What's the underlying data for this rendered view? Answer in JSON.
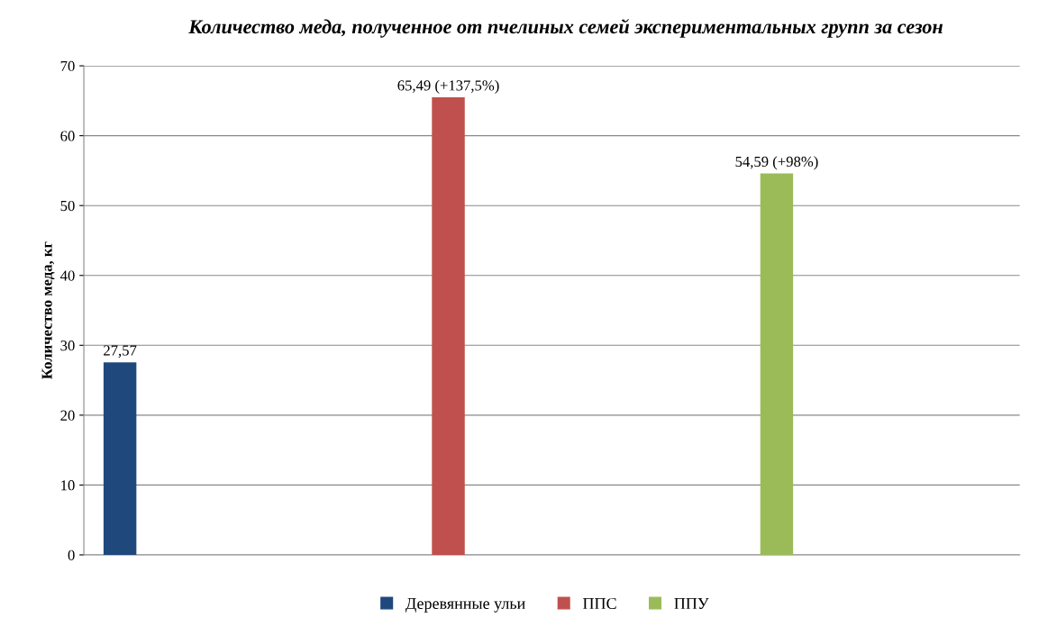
{
  "chart_data": {
    "type": "bar",
    "title": "Количество меда, полученное от пчелиных семей экспериментальных групп за сезон",
    "ylabel": "Количество меда, кг",
    "categories": [
      null
    ],
    "series": [
      {
        "name": "Деревянные ульи",
        "color": "#1f497d",
        "values": [
          27.57
        ],
        "value_labels": [
          "27,57"
        ]
      },
      {
        "name": "ППС",
        "color": "#c0504d",
        "values": [
          65.49
        ],
        "value_labels": [
          "65,49 (+137,5%)"
        ]
      },
      {
        "name": "ППУ",
        "color": "#9bbb59",
        "values": [
          54.59
        ],
        "value_labels": [
          "54,59 (+98%)"
        ]
      }
    ],
    "ylim": [
      0,
      70
    ],
    "yticks": [
      0,
      10,
      20,
      30,
      40,
      50,
      60,
      70
    ],
    "grid": "y",
    "legend": "bottom"
  }
}
